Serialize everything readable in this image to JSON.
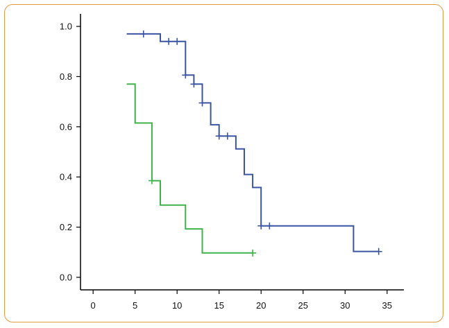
{
  "colors": {
    "frame": "#e39a3b",
    "axis": "#000000"
  },
  "chart_data": {
    "type": "line",
    "title": "",
    "xlabel": "",
    "ylabel": "",
    "xlim": [
      -1.5,
      37
    ],
    "ylim": [
      -0.05,
      1.05
    ],
    "x_ticks": [
      "0",
      "5",
      "10",
      "15",
      "20",
      "25",
      "30",
      "35"
    ],
    "y_ticks": [
      "0.0",
      "0.2",
      "0.4",
      "0.6",
      "0.8",
      "1.0"
    ],
    "x_tick_values": [
      0,
      5,
      10,
      15,
      20,
      25,
      30,
      35
    ],
    "y_tick_values": [
      0,
      0.2,
      0.4,
      0.6,
      0.8,
      1.0
    ],
    "grid": false,
    "series": [
      {
        "color": "#3a55a4",
        "step": [
          [
            4,
            0.97
          ],
          [
            8,
            0.97
          ],
          [
            8,
            0.94
          ],
          [
            11,
            0.94
          ],
          [
            11,
            0.806
          ],
          [
            12,
            0.806
          ],
          [
            12,
            0.77
          ],
          [
            13,
            0.77
          ],
          [
            13,
            0.695
          ],
          [
            14,
            0.695
          ],
          [
            14,
            0.608
          ],
          [
            15,
            0.608
          ],
          [
            15,
            0.563
          ],
          [
            17,
            0.563
          ],
          [
            17,
            0.512
          ],
          [
            18,
            0.512
          ],
          [
            18,
            0.41
          ],
          [
            19,
            0.41
          ],
          [
            19,
            0.358
          ],
          [
            20,
            0.358
          ],
          [
            20,
            0.205
          ],
          [
            31,
            0.205
          ],
          [
            31,
            0.103
          ],
          [
            34,
            0.103
          ]
        ],
        "censored": [
          [
            6,
            0.97
          ],
          [
            9,
            0.94
          ],
          [
            10,
            0.94
          ],
          [
            11,
            0.806
          ],
          [
            12,
            0.77
          ],
          [
            13,
            0.695
          ],
          [
            15,
            0.563
          ],
          [
            16,
            0.563
          ],
          [
            20,
            0.205
          ],
          [
            21,
            0.205
          ],
          [
            34,
            0.103
          ]
        ]
      },
      {
        "color": "#3fb24a",
        "step": [
          [
            4,
            0.77
          ],
          [
            5,
            0.77
          ],
          [
            5,
            0.615
          ],
          [
            7,
            0.615
          ],
          [
            7,
            0.385
          ],
          [
            8,
            0.385
          ],
          [
            8,
            0.288
          ],
          [
            11,
            0.288
          ],
          [
            11,
            0.193
          ],
          [
            13,
            0.193
          ],
          [
            13,
            0.097
          ],
          [
            19,
            0.097
          ]
        ],
        "censored": [
          [
            7,
            0.385
          ],
          [
            19,
            0.097
          ]
        ]
      }
    ]
  }
}
